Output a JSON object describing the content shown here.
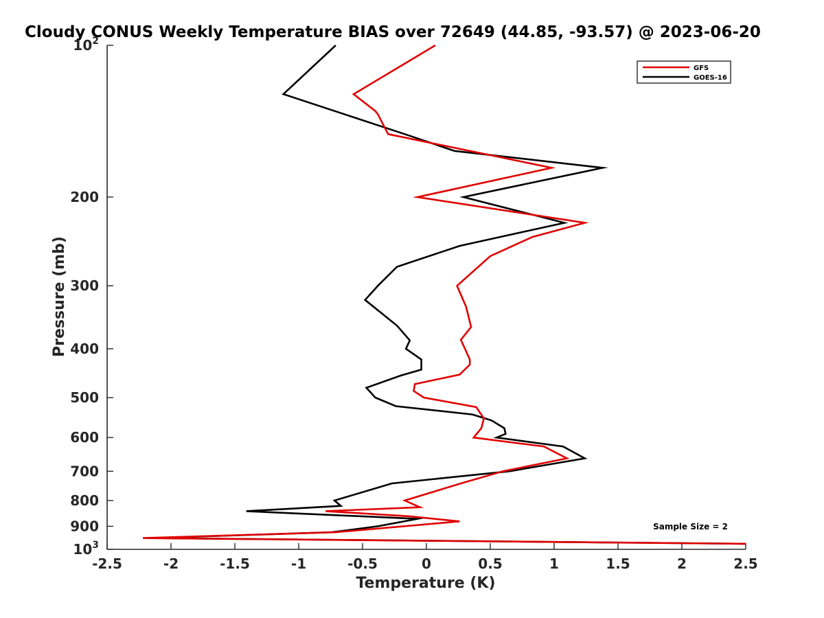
{
  "chart_data": {
    "type": "line",
    "title": "Cloudy CONUS Weekly Temperature BIAS over 72649 (44.85, -93.57) @ 2023-06-20",
    "xlabel": "Temperature (K)",
    "ylabel": "Pressure (mb)",
    "xlim": [
      -2.5,
      2.5
    ],
    "ylim": [
      100,
      1000
    ],
    "y_scale": "log",
    "y_reversed": true,
    "x_ticks": [
      -2.5,
      -2,
      -1.5,
      -1,
      -0.5,
      0,
      0.5,
      1,
      1.5,
      2,
      2.5
    ],
    "x_tick_labels": [
      "-2.5",
      "-2",
      "-1.5",
      "-1",
      "-0.5",
      "0",
      "0.5",
      "1",
      "1.5",
      "2",
      "2.5"
    ],
    "y_ticks": [
      {
        "value": 100,
        "base": "10",
        "exp": "2"
      },
      {
        "value": 200,
        "label": "200"
      },
      {
        "value": 300,
        "label": "300"
      },
      {
        "value": 400,
        "label": "400"
      },
      {
        "value": 500,
        "label": "500"
      },
      {
        "value": 600,
        "label": "600"
      },
      {
        "value": 700,
        "label": "700"
      },
      {
        "value": 800,
        "label": "800"
      },
      {
        "value": 900,
        "label": "900"
      },
      {
        "value": 1000,
        "base": "10",
        "exp": "3"
      }
    ],
    "grid": false,
    "legend": {
      "placement": "top-right"
    },
    "annotation": "Sample Size = 2",
    "series": [
      {
        "name": "GFS",
        "color": "#e00000",
        "points": [
          {
            "x": 0.07,
            "p": 100
          },
          {
            "x": -0.57,
            "p": 125
          },
          {
            "x": -0.4,
            "p": 135
          },
          {
            "x": -0.38,
            "p": 137
          },
          {
            "x": -0.3,
            "p": 150
          },
          {
            "x": 0.98,
            "p": 175
          },
          {
            "x": -0.07,
            "p": 200
          },
          {
            "x": 1.24,
            "p": 225
          },
          {
            "x": 0.83,
            "p": 240
          },
          {
            "x": 0.5,
            "p": 262
          },
          {
            "x": 0.24,
            "p": 300
          },
          {
            "x": 0.31,
            "p": 330
          },
          {
            "x": 0.35,
            "p": 362
          },
          {
            "x": 0.27,
            "p": 384
          },
          {
            "x": 0.34,
            "p": 420
          },
          {
            "x": 0.34,
            "p": 430
          },
          {
            "x": 0.26,
            "p": 450
          },
          {
            "x": -0.09,
            "p": 470
          },
          {
            "x": -0.1,
            "p": 485
          },
          {
            "x": -0.02,
            "p": 500
          },
          {
            "x": 0.39,
            "p": 522
          },
          {
            "x": 0.45,
            "p": 550
          },
          {
            "x": 0.43,
            "p": 575
          },
          {
            "x": 0.37,
            "p": 600
          },
          {
            "x": 0.92,
            "p": 625
          },
          {
            "x": 1.1,
            "p": 660
          },
          {
            "x": 0.6,
            "p": 700
          },
          {
            "x": 0.27,
            "p": 740
          },
          {
            "x": -0.17,
            "p": 800
          },
          {
            "x": -0.05,
            "p": 825
          },
          {
            "x": -0.79,
            "p": 840
          },
          {
            "x": -0.13,
            "p": 860
          },
          {
            "x": 0.26,
            "p": 880
          },
          {
            "x": -0.71,
            "p": 925
          },
          {
            "x": -2.22,
            "p": 950
          },
          {
            "x": 2.5,
            "p": 975
          }
        ]
      },
      {
        "name": "GOES-16",
        "color": "#000000",
        "points": [
          {
            "x": -0.71,
            "p": 100
          },
          {
            "x": -1.12,
            "p": 125
          },
          {
            "x": -0.17,
            "p": 150
          },
          {
            "x": 0.22,
            "p": 162
          },
          {
            "x": 1.38,
            "p": 175
          },
          {
            "x": 0.29,
            "p": 200
          },
          {
            "x": 1.08,
            "p": 225
          },
          {
            "x": 0.26,
            "p": 250
          },
          {
            "x": -0.23,
            "p": 275
          },
          {
            "x": -0.38,
            "p": 300
          },
          {
            "x": -0.48,
            "p": 320
          },
          {
            "x": -0.23,
            "p": 360
          },
          {
            "x": -0.13,
            "p": 385
          },
          {
            "x": -0.16,
            "p": 400
          },
          {
            "x": -0.04,
            "p": 420
          },
          {
            "x": -0.04,
            "p": 440
          },
          {
            "x": -0.2,
            "p": 452
          },
          {
            "x": -0.47,
            "p": 478
          },
          {
            "x": -0.4,
            "p": 500
          },
          {
            "x": -0.24,
            "p": 520
          },
          {
            "x": 0.36,
            "p": 540
          },
          {
            "x": 0.51,
            "p": 555
          },
          {
            "x": 0.61,
            "p": 575
          },
          {
            "x": 0.62,
            "p": 590
          },
          {
            "x": 0.55,
            "p": 600
          },
          {
            "x": 1.07,
            "p": 625
          },
          {
            "x": 1.24,
            "p": 660
          },
          {
            "x": 0.65,
            "p": 700
          },
          {
            "x": -0.27,
            "p": 740
          },
          {
            "x": -0.72,
            "p": 800
          },
          {
            "x": -0.67,
            "p": 820
          },
          {
            "x": -1.41,
            "p": 840
          },
          {
            "x": -0.07,
            "p": 870
          },
          {
            "x": -0.38,
            "p": 900
          },
          {
            "x": -0.74,
            "p": 925
          },
          {
            "x": -2.15,
            "p": 950
          },
          {
            "x": 2.5,
            "p": 975
          }
        ]
      }
    ]
  }
}
